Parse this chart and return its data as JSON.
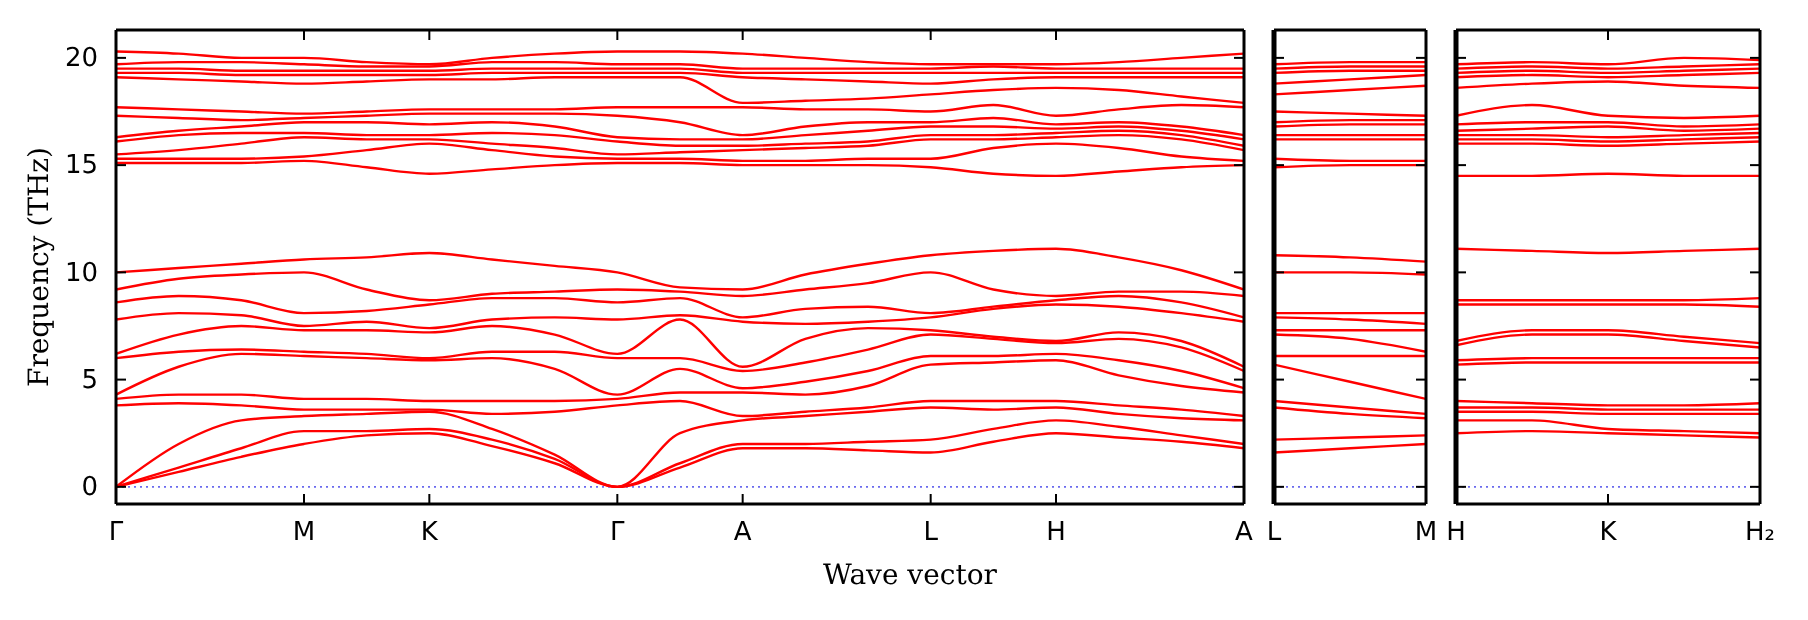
{
  "chart_data": [
    {
      "type": "line",
      "xlabel": "Wave vector",
      "ylabel": "Frequency (THz)",
      "categories": [
        "Γ",
        null,
        null,
        "M",
        null,
        "K",
        null,
        null,
        "Γ",
        null,
        "A",
        null,
        null,
        "L",
        null,
        "H",
        null,
        null,
        "A"
      ],
      "ylim": [
        -0.8,
        21.3
      ],
      "yticks": [
        0,
        5,
        10,
        15,
        20
      ],
      "ref_lines": [
        {
          "axis": "y",
          "value": 0,
          "color": "#6a6aee",
          "line_style": "dotted"
        }
      ],
      "series": [
        {
          "color": "#ff0000",
          "values": [
            0,
            0.7,
            1.4,
            2.0,
            2.4,
            2.5,
            1.9,
            1.1,
            0,
            0.9,
            1.8,
            1.8,
            1.7,
            1.6,
            2.1,
            2.5,
            2.3,
            2.1,
            1.8
          ]
        },
        {
          "color": "#ff0000",
          "values": [
            0,
            0.9,
            1.8,
            2.6,
            2.6,
            2.7,
            2.2,
            1.3,
            0,
            1.1,
            2.0,
            2.0,
            2.1,
            2.2,
            2.7,
            3.1,
            2.8,
            2.4,
            2.0
          ]
        },
        {
          "color": "#ff0000",
          "values": [
            0,
            2.0,
            3.1,
            3.3,
            3.4,
            3.5,
            2.7,
            1.5,
            0,
            2.5,
            3.1,
            3.3,
            3.5,
            3.7,
            3.6,
            3.7,
            3.4,
            3.2,
            3.1
          ]
        },
        {
          "color": "#ff0000",
          "values": [
            3.8,
            3.9,
            3.8,
            3.6,
            3.6,
            3.6,
            3.4,
            3.5,
            3.8,
            4.0,
            3.3,
            3.5,
            3.7,
            4.0,
            4.0,
            4.0,
            3.8,
            3.6,
            3.3
          ]
        },
        {
          "color": "#ff0000",
          "values": [
            4.1,
            4.3,
            4.3,
            4.1,
            4.1,
            4.0,
            4.0,
            4.0,
            4.1,
            4.4,
            4.4,
            4.3,
            4.7,
            5.7,
            5.8,
            5.9,
            5.2,
            4.7,
            4.4
          ]
        },
        {
          "color": "#ff0000",
          "values": [
            4.3,
            5.6,
            6.2,
            6.1,
            6.0,
            5.9,
            6.0,
            5.5,
            4.3,
            5.5,
            4.6,
            4.9,
            5.4,
            6.1,
            6.1,
            6.2,
            5.9,
            5.4,
            4.6
          ]
        },
        {
          "color": "#ff0000",
          "values": [
            6.0,
            6.3,
            6.4,
            6.3,
            6.2,
            6.0,
            6.3,
            6.3,
            6.0,
            6.0,
            5.4,
            5.8,
            6.4,
            7.1,
            6.9,
            6.7,
            6.9,
            6.5,
            5.4
          ]
        },
        {
          "color": "#ff0000",
          "values": [
            6.2,
            7.1,
            7.5,
            7.3,
            7.3,
            7.2,
            7.5,
            7.1,
            6.2,
            7.8,
            5.6,
            6.9,
            7.4,
            7.3,
            7.0,
            6.8,
            7.2,
            6.8,
            5.6
          ]
        },
        {
          "color": "#ff0000",
          "values": [
            7.8,
            8.1,
            8.0,
            7.5,
            7.7,
            7.4,
            7.8,
            7.9,
            7.8,
            8.0,
            7.7,
            7.6,
            7.7,
            7.9,
            8.3,
            8.5,
            8.4,
            8.1,
            7.7
          ]
        },
        {
          "color": "#ff0000",
          "values": [
            8.6,
            8.9,
            8.7,
            8.1,
            8.2,
            8.5,
            8.8,
            8.8,
            8.6,
            8.8,
            7.9,
            8.3,
            8.4,
            8.1,
            8.4,
            8.7,
            8.9,
            8.6,
            7.9
          ]
        },
        {
          "color": "#ff0000",
          "values": [
            9.2,
            9.7,
            9.9,
            10.0,
            9.2,
            8.7,
            9.0,
            9.1,
            9.2,
            9.1,
            8.9,
            9.2,
            9.5,
            10.0,
            9.2,
            8.9,
            9.1,
            9.1,
            8.9
          ]
        },
        {
          "color": "#ff0000",
          "values": [
            10.0,
            10.2,
            10.4,
            10.6,
            10.7,
            10.9,
            10.6,
            10.3,
            10.0,
            9.3,
            9.2,
            9.9,
            10.4,
            10.8,
            11.0,
            11.1,
            10.7,
            10.1,
            9.2
          ]
        },
        {
          "color": "#ff0000",
          "values": [
            15.1,
            15.1,
            15.1,
            15.2,
            14.9,
            14.6,
            14.8,
            15.0,
            15.1,
            15.1,
            15.0,
            15.0,
            15.0,
            14.9,
            14.6,
            14.5,
            14.7,
            14.9,
            15.0
          ]
        },
        {
          "color": "#ff0000",
          "values": [
            15.3,
            15.3,
            15.3,
            15.4,
            15.7,
            16.0,
            15.7,
            15.4,
            15.3,
            15.3,
            15.2,
            15.2,
            15.3,
            15.3,
            15.8,
            16.0,
            15.8,
            15.4,
            15.2
          ]
        },
        {
          "color": "#ff0000",
          "values": [
            15.5,
            15.7,
            16.0,
            16.3,
            16.2,
            16.2,
            16.0,
            15.8,
            15.5,
            15.6,
            15.7,
            15.8,
            15.9,
            16.2,
            16.2,
            16.3,
            16.4,
            16.2,
            15.7
          ]
        },
        {
          "color": "#ff0000",
          "values": [
            16.1,
            16.4,
            16.5,
            16.5,
            16.4,
            16.4,
            16.5,
            16.4,
            16.1,
            15.9,
            15.9,
            16.0,
            16.1,
            16.4,
            16.4,
            16.5,
            16.6,
            16.4,
            15.9
          ]
        },
        {
          "color": "#ff0000",
          "values": [
            16.3,
            16.6,
            16.8,
            17.0,
            17.0,
            16.9,
            17.0,
            16.8,
            16.3,
            16.2,
            16.2,
            16.4,
            16.6,
            16.8,
            16.8,
            16.7,
            16.8,
            16.6,
            16.2
          ]
        },
        {
          "color": "#ff0000",
          "values": [
            17.3,
            17.2,
            17.1,
            17.2,
            17.3,
            17.4,
            17.4,
            17.4,
            17.3,
            17.0,
            16.4,
            16.8,
            17.0,
            17.0,
            17.2,
            16.9,
            17.0,
            16.8,
            16.4
          ]
        },
        {
          "color": "#ff0000",
          "values": [
            17.7,
            17.6,
            17.5,
            17.4,
            17.5,
            17.6,
            17.6,
            17.6,
            17.7,
            17.7,
            17.7,
            17.6,
            17.6,
            17.5,
            17.8,
            17.3,
            17.6,
            17.8,
            17.7
          ]
        },
        {
          "color": "#ff0000",
          "values": [
            19.1,
            19.0,
            18.9,
            18.8,
            18.9,
            19.0,
            19.0,
            19.1,
            19.1,
            19.1,
            17.9,
            18.0,
            18.1,
            18.3,
            18.5,
            18.6,
            18.5,
            18.2,
            17.9
          ]
        },
        {
          "color": "#ff0000",
          "values": [
            19.3,
            19.3,
            19.2,
            19.2,
            19.2,
            19.2,
            19.3,
            19.3,
            19.3,
            19.3,
            19.1,
            19.0,
            18.9,
            18.8,
            19.0,
            19.1,
            19.1,
            19.1,
            19.1
          ]
        },
        {
          "color": "#ff0000",
          "values": [
            19.5,
            19.5,
            19.4,
            19.4,
            19.4,
            19.4,
            19.5,
            19.5,
            19.5,
            19.5,
            19.3,
            19.3,
            19.3,
            19.3,
            19.3,
            19.3,
            19.3,
            19.3,
            19.3
          ]
        },
        {
          "color": "#ff0000",
          "values": [
            19.7,
            19.8,
            19.8,
            19.7,
            19.6,
            19.6,
            19.8,
            19.8,
            19.7,
            19.7,
            19.5,
            19.5,
            19.5,
            19.5,
            19.6,
            19.5,
            19.5,
            19.5,
            19.5
          ]
        },
        {
          "color": "#ff0000",
          "values": [
            20.3,
            20.2,
            20.0,
            20.0,
            19.8,
            19.7,
            20.0,
            20.2,
            20.3,
            20.3,
            20.2,
            20.0,
            19.8,
            19.7,
            19.7,
            19.7,
            19.8,
            20.0,
            20.2
          ]
        }
      ]
    },
    {
      "type": "line",
      "categories": [
        "L",
        null,
        "M"
      ],
      "ylim": [
        -0.8,
        21.3
      ],
      "yticks": [
        0,
        5,
        10,
        15,
        20
      ],
      "tick_labels": "x",
      "ref_lines": [
        {
          "axis": "y",
          "value": 0,
          "color": "#6a6aee",
          "line_style": "dotted"
        }
      ],
      "series": [
        {
          "color": "#ff0000",
          "values": [
            1.6,
            1.8,
            2.0
          ]
        },
        {
          "color": "#ff0000",
          "values": [
            2.2,
            2.3,
            2.4
          ]
        },
        {
          "color": "#ff0000",
          "values": [
            3.7,
            3.4,
            3.2
          ]
        },
        {
          "color": "#ff0000",
          "values": [
            4.0,
            3.7,
            3.4
          ]
        },
        {
          "color": "#ff0000",
          "values": [
            5.7,
            4.9,
            4.1
          ]
        },
        {
          "color": "#ff0000",
          "values": [
            6.1,
            6.1,
            6.1
          ]
        },
        {
          "color": "#ff0000",
          "values": [
            7.1,
            6.9,
            6.3
          ]
        },
        {
          "color": "#ff0000",
          "values": [
            7.3,
            7.3,
            7.3
          ]
        },
        {
          "color": "#ff0000",
          "values": [
            7.9,
            7.8,
            7.6
          ]
        },
        {
          "color": "#ff0000",
          "values": [
            8.1,
            8.1,
            8.1
          ]
        },
        {
          "color": "#ff0000",
          "values": [
            10.0,
            10.0,
            9.9
          ]
        },
        {
          "color": "#ff0000",
          "values": [
            10.8,
            10.7,
            10.5
          ]
        },
        {
          "color": "#ff0000",
          "values": [
            14.9,
            15.0,
            15.0
          ]
        },
        {
          "color": "#ff0000",
          "values": [
            15.3,
            15.2,
            15.2
          ]
        },
        {
          "color": "#ff0000",
          "values": [
            16.2,
            16.2,
            16.2
          ]
        },
        {
          "color": "#ff0000",
          "values": [
            16.4,
            16.4,
            16.4
          ]
        },
        {
          "color": "#ff0000",
          "values": [
            16.8,
            16.9,
            16.9
          ]
        },
        {
          "color": "#ff0000",
          "values": [
            17.0,
            17.1,
            17.1
          ]
        },
        {
          "color": "#ff0000",
          "values": [
            17.5,
            17.4,
            17.3
          ]
        },
        {
          "color": "#ff0000",
          "values": [
            18.3,
            18.5,
            18.7
          ]
        },
        {
          "color": "#ff0000",
          "values": [
            18.8,
            19.0,
            19.2
          ]
        },
        {
          "color": "#ff0000",
          "values": [
            19.3,
            19.4,
            19.4
          ]
        },
        {
          "color": "#ff0000",
          "values": [
            19.5,
            19.6,
            19.6
          ]
        },
        {
          "color": "#ff0000",
          "values": [
            19.7,
            19.8,
            19.8
          ]
        }
      ]
    },
    {
      "type": "line",
      "categories": [
        "H",
        null,
        "K",
        null,
        "H₂"
      ],
      "ylim": [
        -0.8,
        21.3
      ],
      "yticks": [
        0,
        5,
        10,
        15,
        20
      ],
      "tick_labels": "x",
      "ref_lines": [
        {
          "axis": "y",
          "value": 0,
          "color": "#6a6aee",
          "line_style": "dotted"
        }
      ],
      "series": [
        {
          "color": "#ff0000",
          "values": [
            2.5,
            2.6,
            2.5,
            2.4,
            2.3
          ]
        },
        {
          "color": "#ff0000",
          "values": [
            3.1,
            3.1,
            2.7,
            2.6,
            2.5
          ]
        },
        {
          "color": "#ff0000",
          "values": [
            3.5,
            3.5,
            3.4,
            3.4,
            3.4
          ]
        },
        {
          "color": "#ff0000",
          "values": [
            3.7,
            3.7,
            3.6,
            3.6,
            3.6
          ]
        },
        {
          "color": "#ff0000",
          "values": [
            4.0,
            3.9,
            3.8,
            3.8,
            3.9
          ]
        },
        {
          "color": "#ff0000",
          "values": [
            5.7,
            5.8,
            5.8,
            5.8,
            5.8
          ]
        },
        {
          "color": "#ff0000",
          "values": [
            5.9,
            6.0,
            6.0,
            6.0,
            6.0
          ]
        },
        {
          "color": "#ff0000",
          "values": [
            6.6,
            7.1,
            7.1,
            6.8,
            6.5
          ]
        },
        {
          "color": "#ff0000",
          "values": [
            6.8,
            7.3,
            7.3,
            7.0,
            6.7
          ]
        },
        {
          "color": "#ff0000",
          "values": [
            8.5,
            8.5,
            8.5,
            8.5,
            8.4
          ]
        },
        {
          "color": "#ff0000",
          "values": [
            8.7,
            8.7,
            8.7,
            8.7,
            8.8
          ]
        },
        {
          "color": "#ff0000",
          "values": [
            11.1,
            11.0,
            10.9,
            11.0,
            11.1
          ]
        },
        {
          "color": "#ff0000",
          "values": [
            14.5,
            14.5,
            14.6,
            14.5,
            14.5
          ]
        },
        {
          "color": "#ff0000",
          "values": [
            16.0,
            16.0,
            15.9,
            16.0,
            16.1
          ]
        },
        {
          "color": "#ff0000",
          "values": [
            16.2,
            16.2,
            16.1,
            16.2,
            16.3
          ]
        },
        {
          "color": "#ff0000",
          "values": [
            16.4,
            16.4,
            16.3,
            16.4,
            16.5
          ]
        },
        {
          "color": "#ff0000",
          "values": [
            16.6,
            16.7,
            16.8,
            16.6,
            16.7
          ]
        },
        {
          "color": "#ff0000",
          "values": [
            16.9,
            17.0,
            17.0,
            16.8,
            16.9
          ]
        },
        {
          "color": "#ff0000",
          "values": [
            17.3,
            17.8,
            17.3,
            17.2,
            17.3
          ]
        },
        {
          "color": "#ff0000",
          "values": [
            18.6,
            18.8,
            18.9,
            18.7,
            18.6
          ]
        },
        {
          "color": "#ff0000",
          "values": [
            19.1,
            19.2,
            19.1,
            19.2,
            19.3
          ]
        },
        {
          "color": "#ff0000",
          "values": [
            19.3,
            19.4,
            19.3,
            19.4,
            19.5
          ]
        },
        {
          "color": "#ff0000",
          "values": [
            19.5,
            19.6,
            19.5,
            19.6,
            19.7
          ]
        },
        {
          "color": "#ff0000",
          "values": [
            19.7,
            19.8,
            19.7,
            20.0,
            19.9
          ]
        }
      ]
    }
  ]
}
